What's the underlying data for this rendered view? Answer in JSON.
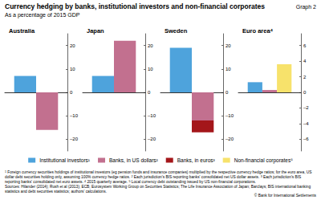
{
  "title": "Currency hedging by banks, institutional investors and non-financial corporates",
  "graph_label": "Graph 2",
  "subtitle": "As a percentage of 2015 GDP",
  "footnotes": [
    {
      "mark": "1",
      "text": "Foreign currency securities holdings of institutional investors (eg pension funds and insurance companies) multiplied by the respective currency hedge ratios; for the euro area, US dollar debt securities holding only, assuming 100% currency hedge ratios."
    },
    {
      "mark": "2",
      "text": "Each jurisdiction's BIS reporting banks' consolidated net US dollar assets."
    },
    {
      "mark": "3",
      "text": "Each jurisdiction's BIS reporting banks' consolidated net euro assets."
    },
    {
      "mark": "4",
      "text": "2015 quarterly average."
    },
    {
      "mark": "5",
      "text": "Local currency debt outstanding issued by US non-financial corporations."
    }
  ],
  "sources": "Sources: Hilander (2014); Rush et al (2013); ECB; Eurosystem Working Group on Securities Statistics; The Life Insurance Association of Japan; Barclays; BIS international banking statistics and debt securities statistics; authors' calculations.",
  "copyright": "© Bank for International Settlements",
  "chart_data": [
    {
      "type": "bar",
      "title": "Australia",
      "categories": [
        null
      ],
      "grid": false,
      "legend": "bottom",
      "ylim": [
        -25,
        25
      ],
      "yticks": [
        {
          "value": -20,
          "label": "–20"
        },
        {
          "value": -10,
          "label": "–10"
        },
        0,
        10,
        20
      ],
      "series": [
        {
          "name": "Institutional investors¹",
          "color": "#4ea3dc",
          "values": [
            7
          ]
        },
        {
          "name": "Banks, in US dollars²",
          "color": "#c2708f",
          "values": [
            -16
          ]
        }
      ]
    },
    {
      "type": "bar",
      "title": "Japan",
      "categories": [
        null
      ],
      "grid": false,
      "legend": "bottom",
      "ylim": [
        -25,
        25
      ],
      "yticks": [
        {
          "value": -20,
          "label": "–20"
        },
        {
          "value": -10,
          "label": "–10"
        },
        0,
        10,
        20
      ],
      "series": [
        {
          "name": "Institutional investors¹",
          "color": "#4ea3dc",
          "values": [
            7
          ]
        },
        {
          "name": "Banks, in US dollars²",
          "color": "#c2708f",
          "values": [
            22
          ]
        }
      ]
    },
    {
      "type": "bar",
      "title": "Sweden",
      "categories": [
        null
      ],
      "grid": false,
      "legend": "bottom",
      "ylim": [
        -25,
        25
      ],
      "yticks": [
        {
          "value": -20,
          "label": "–20"
        },
        {
          "value": -10,
          "label": "–10"
        },
        0,
        10,
        20
      ],
      "series": [
        {
          "name": "Institutional investors¹",
          "color": "#4ea3dc",
          "values": [
            19
          ]
        },
        {
          "name": "Banks, in US dollars²",
          "color": "#c2708f",
          "values": [
            -12
          ],
          "stacked": true
        },
        {
          "name": "Banks, in euros³",
          "color": "#a4161a",
          "values": [
            -5
          ],
          "stacked": true
        }
      ]
    },
    {
      "type": "bar",
      "title": "Euro area⁴",
      "categories": [
        null
      ],
      "grid": false,
      "legend": "bottom",
      "ylim": [
        -7.5,
        7.5
      ],
      "yticks": [
        {
          "value": -6,
          "label": "–6"
        },
        {
          "value": -4,
          "label": "–4"
        },
        {
          "value": -2,
          "label": "–2"
        },
        0,
        2,
        4,
        6
      ],
      "series": [
        {
          "name": "Institutional investors¹",
          "color": "#4ea3dc",
          "values": [
            1.3
          ]
        },
        {
          "name": "Banks, in US dollars²",
          "color": "#c2708f",
          "values": [
            0.3
          ]
        },
        {
          "name": "Non-financial corporates⁵",
          "color": "#f7e26b",
          "values": [
            3.6
          ]
        }
      ]
    }
  ]
}
